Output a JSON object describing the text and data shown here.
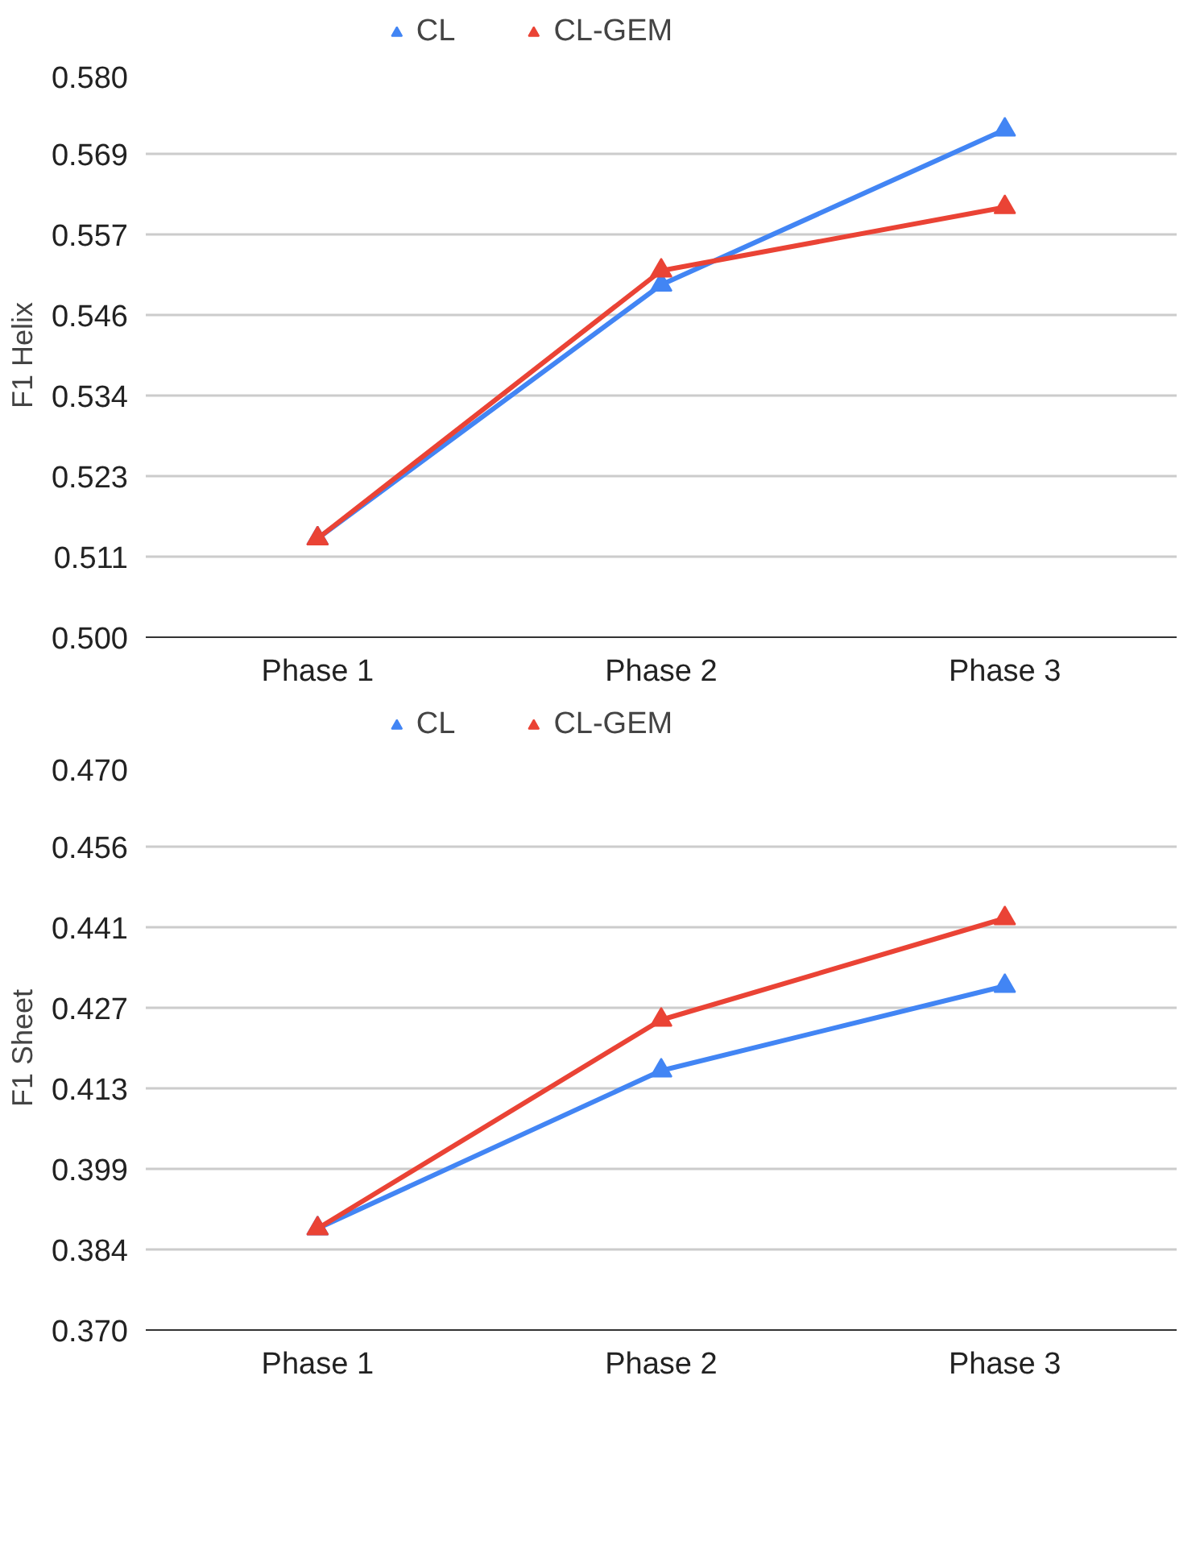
{
  "chart_data": [
    {
      "type": "line",
      "ylabel": "F1 Helix",
      "categories": [
        "Phase 1",
        "Phase 2",
        "Phase 3"
      ],
      "marker": "triangle",
      "line_style": "solid",
      "grid": "y",
      "legend": "top",
      "ylim": [
        0.5,
        0.58
      ],
      "yticks": [
        {
          "value": 0.5,
          "label": "0.500"
        },
        {
          "value": 0.51143,
          "label": "0.511"
        },
        {
          "value": 0.52286,
          "label": "0.523"
        },
        {
          "value": 0.53429,
          "label": "0.534"
        },
        {
          "value": 0.54571,
          "label": "0.546"
        },
        {
          "value": 0.55714,
          "label": "0.557"
        },
        {
          "value": 0.56857,
          "label": "0.569"
        },
        {
          "value": 0.58,
          "label": "0.580"
        }
      ],
      "series": [
        {
          "name": "CL",
          "color": "#4285f4",
          "values": [
            0.514,
            0.55,
            0.572
          ]
        },
        {
          "name": "CL-GEM",
          "color": "#ea4335",
          "values": [
            0.514,
            0.552,
            0.561
          ]
        }
      ]
    },
    {
      "type": "line",
      "ylabel": "F1 Sheet",
      "categories": [
        "Phase 1",
        "Phase 2",
        "Phase 3"
      ],
      "marker": "triangle",
      "line_style": "solid",
      "grid": "y",
      "legend": "top",
      "ylim": [
        0.37,
        0.47
      ],
      "yticks": [
        {
          "value": 0.37,
          "label": "0.370"
        },
        {
          "value": 0.38429,
          "label": "0.384"
        },
        {
          "value": 0.39857,
          "label": "0.399"
        },
        {
          "value": 0.41286,
          "label": "0.413"
        },
        {
          "value": 0.42714,
          "label": "0.427"
        },
        {
          "value": 0.44143,
          "label": "0.441"
        },
        {
          "value": 0.45571,
          "label": "0.456"
        },
        {
          "value": 0.47,
          "label": "0.470"
        }
      ],
      "series": [
        {
          "name": "CL",
          "color": "#4285f4",
          "values": [
            0.388,
            0.416,
            0.431
          ]
        },
        {
          "name": "CL-GEM",
          "color": "#ea4335",
          "values": [
            0.388,
            0.425,
            0.443
          ]
        }
      ]
    }
  ]
}
